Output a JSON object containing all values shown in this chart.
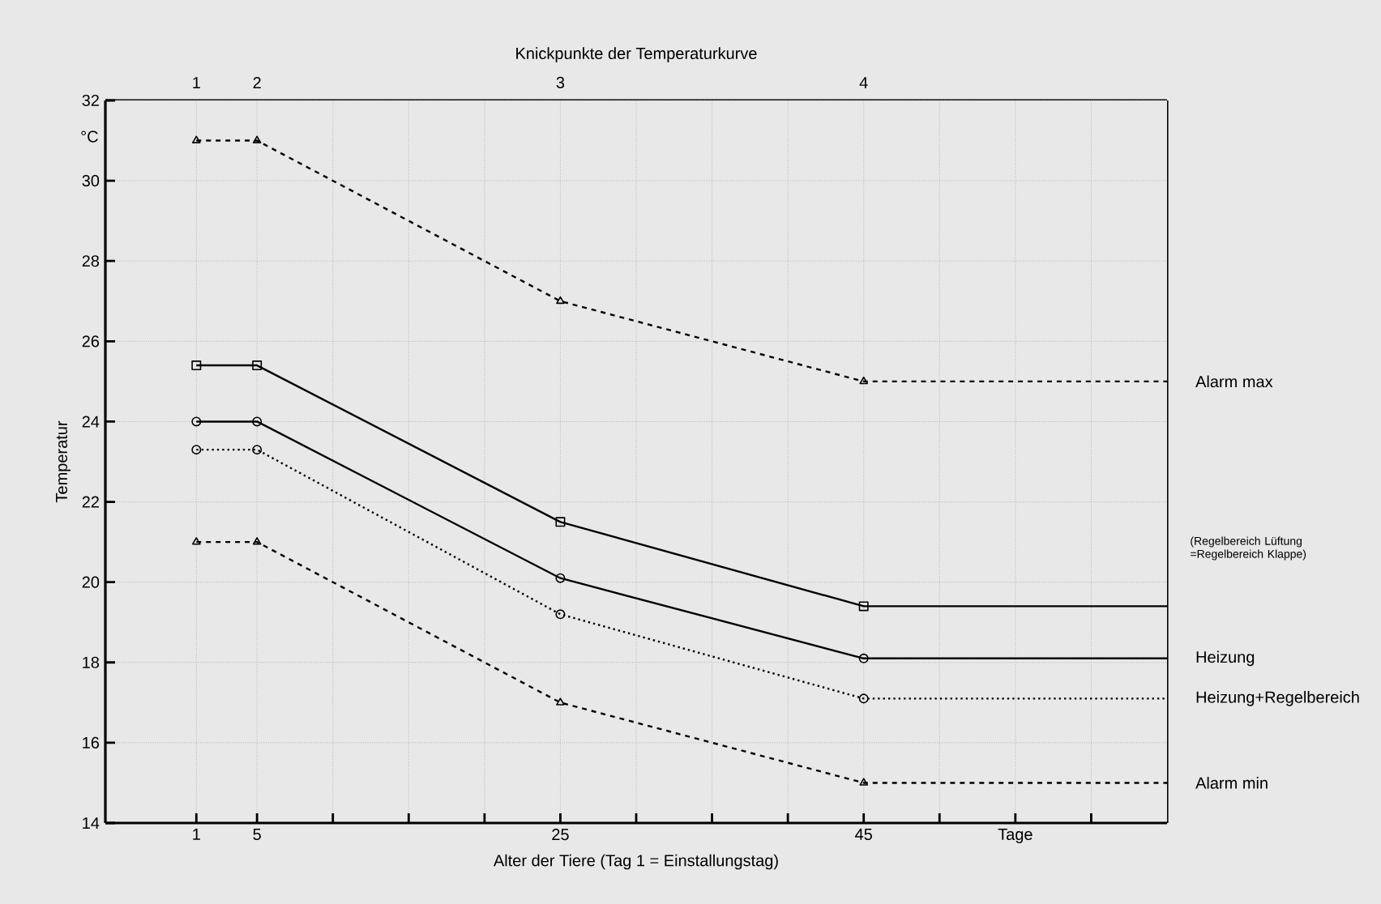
{
  "chart_data": {
    "type": "line",
    "title": "Knickpunkte der Temperaturkurve",
    "xlabel": "Alter der Tiere (Tag 1 = Einstallungstag)",
    "ylabel": "Temperatur",
    "annotations": [
      "°C",
      "(Regelbereich Lüftung =Regelbereich Klappe)",
      "1",
      "2",
      "3",
      "4"
    ],
    "x": [
      1,
      5,
      25,
      45,
      65
    ],
    "xlim": [
      -5,
      65
    ],
    "xticks": [
      1,
      5,
      {
        "value": 10,
        "label": null
      },
      {
        "value": 15,
        "label": null
      },
      {
        "value": 20,
        "label": null
      },
      25,
      {
        "value": 30,
        "label": null
      },
      {
        "value": 35,
        "label": null
      },
      {
        "value": 40,
        "label": null
      },
      45,
      {
        "value": 50,
        "label": null
      },
      {
        "value": 55,
        "label": "Tage"
      },
      {
        "value": 60,
        "label": null
      }
    ],
    "ylim": [
      14,
      32
    ],
    "yticks": [
      14,
      16,
      18,
      20,
      22,
      24,
      26,
      28,
      30,
      32
    ],
    "grid": true,
    "series": [
      {
        "name": "Alarm max",
        "color": "#000000",
        "values": [
          31,
          31,
          27,
          25,
          25
        ],
        "marker": "triangle",
        "line_style": "dashed"
      },
      {
        "color": "#000000",
        "values": [
          25.4,
          25.4,
          21.5,
          19.4,
          19.4
        ],
        "marker": "square",
        "line_style": "solid"
      },
      {
        "name": "Heizung",
        "color": "#000000",
        "values": [
          24,
          24,
          20.1,
          18.1,
          18.1
        ],
        "marker": "circle",
        "line_style": "solid"
      },
      {
        "name": "Heizung+Regelbereich",
        "color": "#000000",
        "values": [
          23.3,
          23.3,
          19.2,
          17.1,
          17.1
        ],
        "marker": "circle",
        "line_style": "dotted"
      },
      {
        "name": "Alarm min",
        "color": "#000000",
        "values": [
          21,
          21,
          17,
          15,
          15
        ],
        "marker": "triangle",
        "line_style": "dashed"
      }
    ]
  }
}
